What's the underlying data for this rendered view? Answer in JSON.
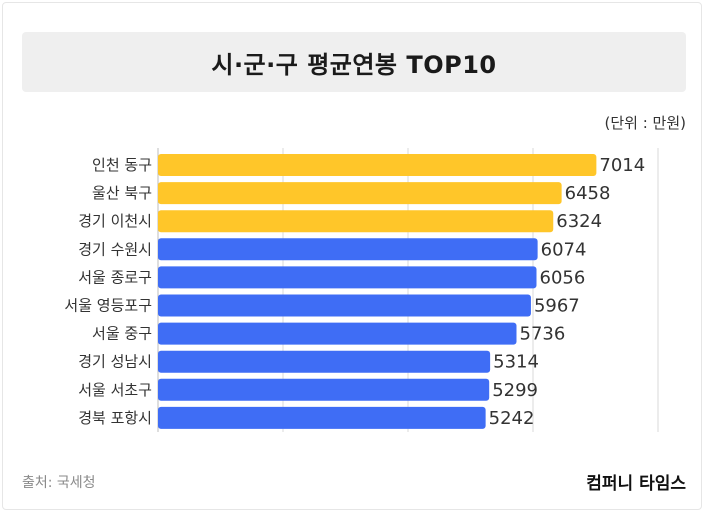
{
  "title": "시·군·구 평균연봉 TOP10",
  "unit_label": "(단위 : 만원)",
  "source": "출처: 국세청",
  "brand": "컴퍼니 타임스",
  "colors": {
    "top3": "#FFC629",
    "rest": "#3F6DF5",
    "grid": "#d9d9d9"
  },
  "chart_data": {
    "type": "bar",
    "orientation": "horizontal",
    "title": "시·군·구 평균연봉 TOP10",
    "unit": "(단위 : 만원)",
    "categories": [
      "인천 동구",
      "울산 북구",
      "경기 이천시",
      "경기 수원시",
      "서울 종로구",
      "서울 영등포구",
      "서울 중구",
      "경기 성남시",
      "서울 서초구",
      "경북 포항시"
    ],
    "values": [
      7014,
      6458,
      6324,
      6074,
      6056,
      5967,
      5736,
      5314,
      5299,
      5242
    ],
    "highlight_count": 3,
    "xlim": [
      0,
      8000
    ],
    "grid": true
  }
}
